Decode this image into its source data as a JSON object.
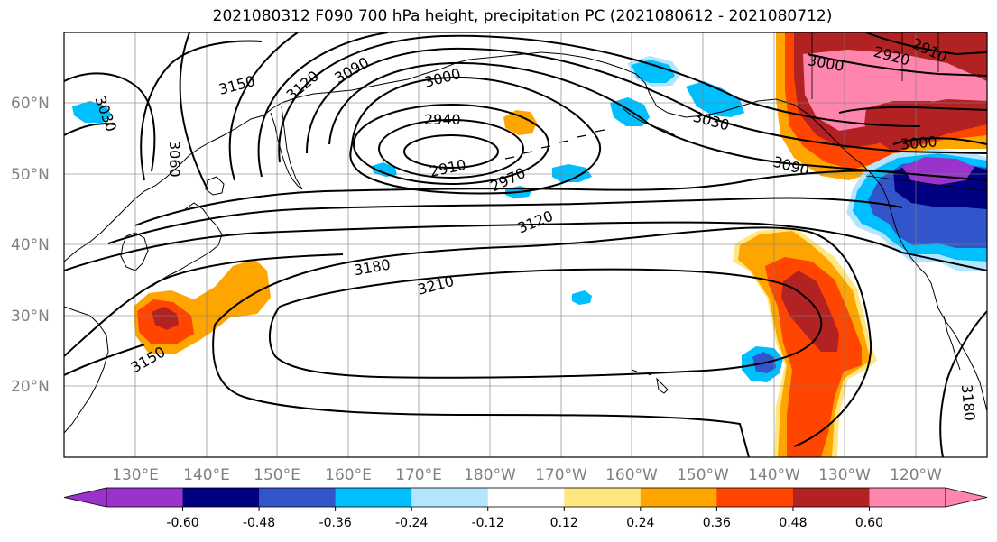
{
  "title": "2021080312 F090 700 hPa height, precipitation PC (2021080612 - 2021080712)",
  "lat_labels": [
    "60°N",
    "50°N",
    "40°N",
    "30°N",
    "20°N"
  ],
  "lon_labels": [
    "130°E",
    "140°E",
    "150°E",
    "160°E",
    "170°E",
    "180°W",
    "170°W",
    "160°W",
    "150°W",
    "140°W",
    "130°W",
    "120°W"
  ],
  "colorbar": {
    "colors": [
      "#9933cc",
      "#000080",
      "#3355cc",
      "#00bfff",
      "#b3e5ff",
      "#ffffff",
      "#ffe680",
      "#ffa500",
      "#ff4500",
      "#b22222",
      "#ff85ad"
    ],
    "ticks": [
      "-0.60",
      "-0.48",
      "-0.36",
      "-0.24",
      "-0.12",
      "0.12",
      "0.24",
      "0.36",
      "0.48",
      "0.60"
    ]
  },
  "contour_labels": {
    "c3150a": "3150",
    "c3120a": "3120",
    "c3090a": "3090",
    "c3000a": "3000",
    "c2940": "2940",
    "c2910": "2910",
    "c2970": "2970",
    "c3030a": "3030",
    "c3060": "3060",
    "c3030b": "3030",
    "c3090b": "3090",
    "c3120b": "3120",
    "c3180a": "3180",
    "c3210": "3210",
    "c3150b": "3150",
    "c3000b": "3000",
    "c2910b": "2910",
    "c2920": "2920",
    "c3000c": "3000",
    "c3180b": "3180"
  }
}
